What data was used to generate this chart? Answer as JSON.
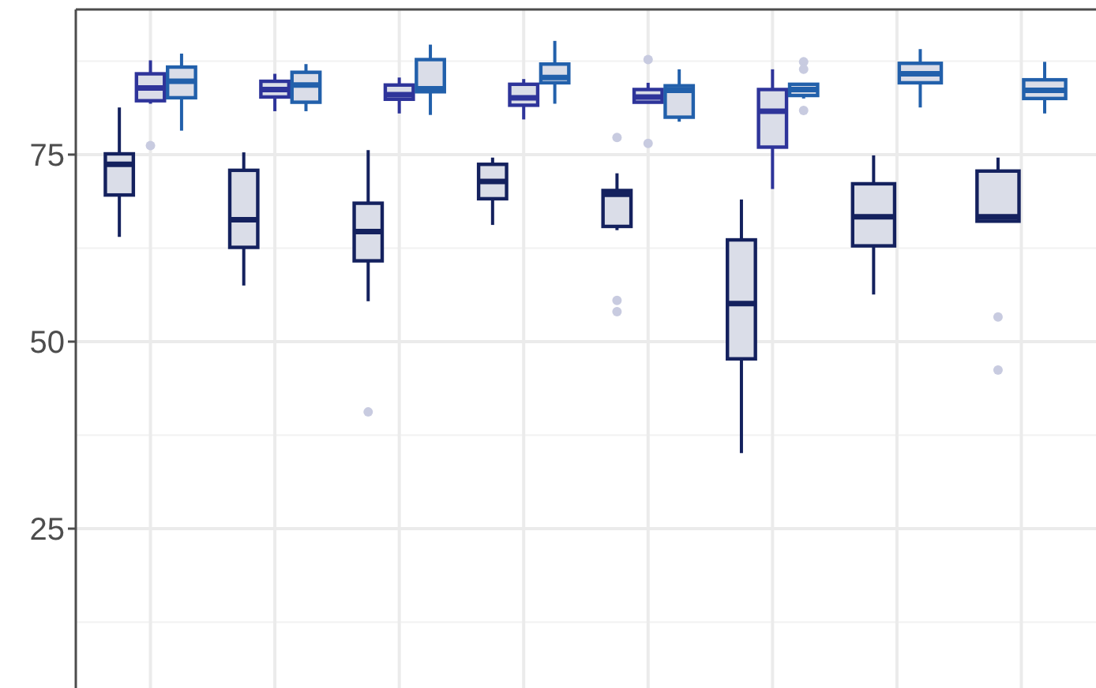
{
  "chart_data": {
    "type": "box",
    "categories": [
      null,
      null,
      null,
      null,
      null,
      null,
      null,
      null
    ],
    "ylim": [
      3.7,
      94.4
    ],
    "yticks": [
      25,
      50,
      75
    ],
    "grid": true,
    "tick_labels": "y",
    "series": [
      {
        "color": "#14215e",
        "boxes": [
          {
            "low": 64.0,
            "q1": 69.6,
            "median": 73.7,
            "q3": 75.1,
            "high": 81.3
          },
          {
            "low": 57.5,
            "q1": 62.6,
            "median": 66.3,
            "q3": 72.9,
            "high": 75.3
          },
          {
            "low": 55.4,
            "q1": 60.8,
            "median": 64.7,
            "q3": 68.5,
            "high": 75.6,
            "outliers": [
              40.6
            ]
          },
          {
            "low": 65.6,
            "q1": 69.1,
            "median": 71.4,
            "q3": 73.7,
            "high": 74.6
          },
          {
            "low": 64.9,
            "q1": 65.4,
            "median": 69.7,
            "q3": 70.2,
            "high": 72.5,
            "outliers": [
              77.3,
              55.5,
              54.0
            ]
          },
          {
            "low": 35.1,
            "q1": 47.7,
            "median": 55.1,
            "q3": 63.6,
            "high": 69.0
          },
          {
            "low": 56.3,
            "q1": 62.8,
            "median": 66.7,
            "q3": 71.1,
            "high": 74.9
          },
          {
            "low": 66.1,
            "q1": 66.1,
            "median": 66.7,
            "q3": 72.8,
            "high": 74.6,
            "outliers": [
              53.3,
              46.2
            ]
          }
        ]
      },
      {
        "color": "#2e349a",
        "boxes": [
          {
            "low": 81.8,
            "q1": 82.2,
            "median": 83.9,
            "q3": 85.8,
            "high": 87.6,
            "outliers": [
              76.2
            ]
          },
          {
            "low": 80.8,
            "q1": 82.7,
            "median": 83.7,
            "q3": 84.8,
            "high": 85.8
          },
          {
            "low": 80.5,
            "q1": 82.4,
            "median": 83.0,
            "q3": 84.3,
            "high": 85.3
          },
          {
            "low": 79.7,
            "q1": 81.6,
            "median": 82.6,
            "q3": 84.4,
            "high": 85.1
          },
          {
            "low": 81.9,
            "q1": 82.0,
            "median": 82.7,
            "q3": 83.7,
            "high": 84.6,
            "outliers": [
              87.7,
              76.5
            ]
          },
          {
            "low": 70.4,
            "q1": 76.0,
            "median": 80.8,
            "q3": 83.7,
            "high": 86.4
          },
          null,
          null
        ]
      },
      {
        "color": "#2260ab",
        "boxes": [
          {
            "low": 78.2,
            "q1": 82.6,
            "median": 84.8,
            "q3": 86.7,
            "high": 88.5
          },
          {
            "low": 80.8,
            "q1": 82.0,
            "median": 84.3,
            "q3": 86.0,
            "high": 87.1
          },
          {
            "low": 80.3,
            "q1": 83.4,
            "median": 83.8,
            "q3": 87.7,
            "high": 89.7
          },
          {
            "low": 81.8,
            "q1": 84.6,
            "median": 85.3,
            "q3": 87.1,
            "high": 90.2
          },
          {
            "low": 79.4,
            "q1": 80.0,
            "median": 83.6,
            "q3": 84.2,
            "high": 86.4
          },
          {
            "low": 82.5,
            "q1": 82.9,
            "median": 83.7,
            "q3": 84.4,
            "high": 84.4,
            "outliers": [
              87.4,
              86.4,
              80.9
            ]
          },
          {
            "low": 81.3,
            "q1": 84.6,
            "median": 85.8,
            "q3": 87.2,
            "high": 89.1
          },
          {
            "low": 80.5,
            "q1": 82.5,
            "median": 83.6,
            "q3": 85.0,
            "high": 87.4
          }
        ]
      }
    ]
  }
}
